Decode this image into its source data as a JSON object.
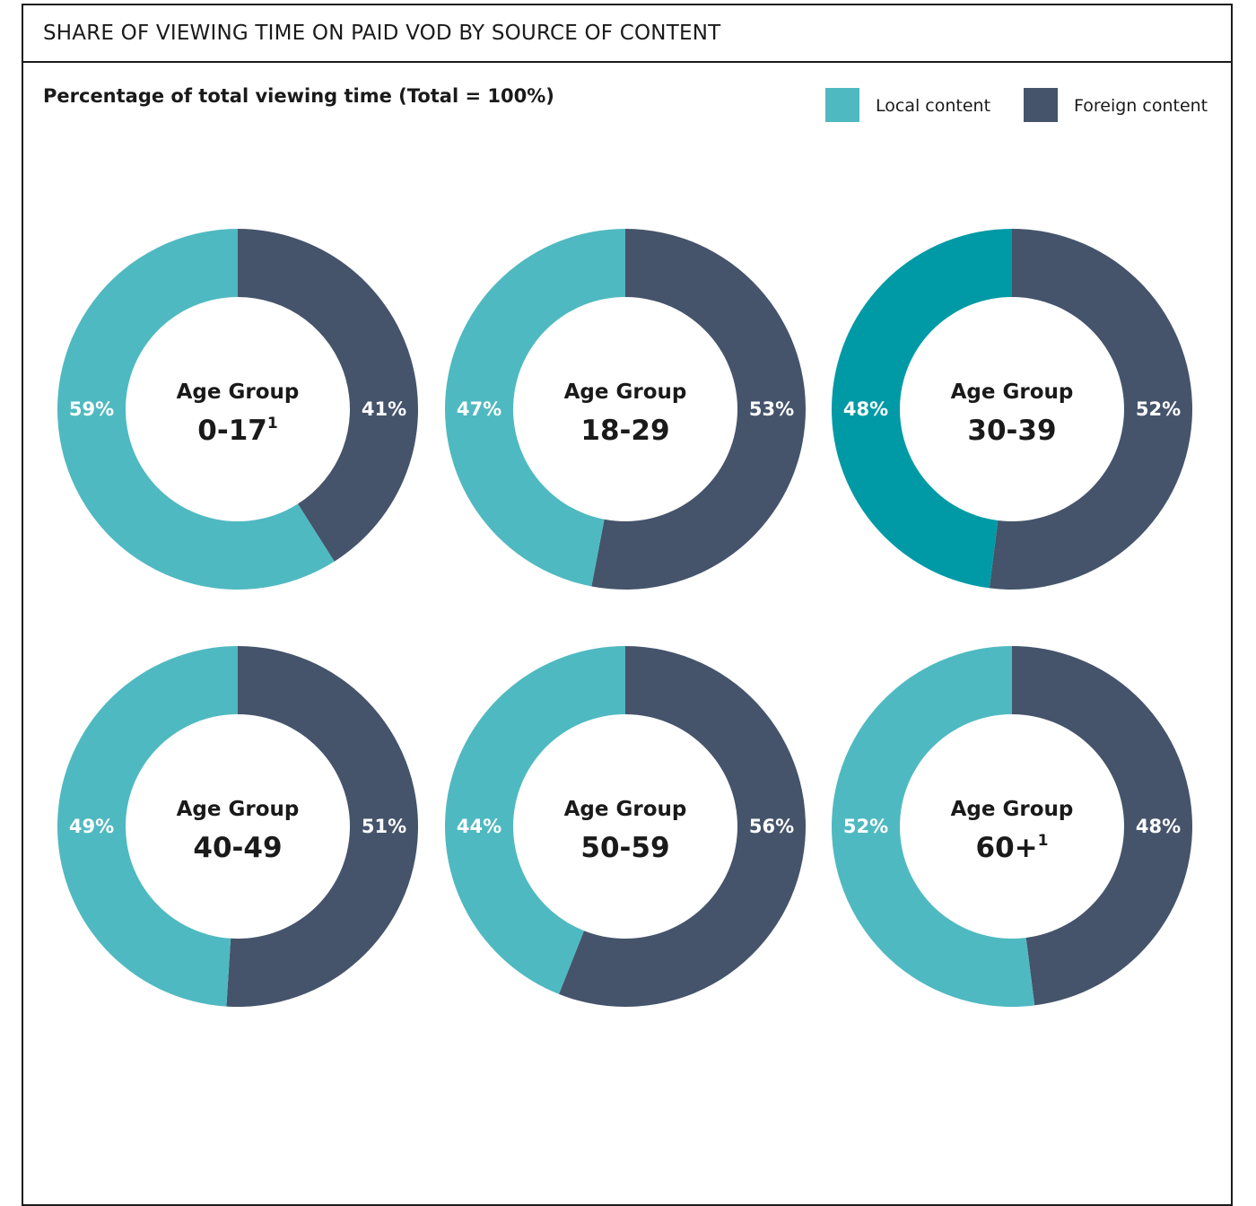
{
  "title": "SHARE OF VIEWING TIME ON PAID VOD BY SOURCE OF CONTENT",
  "subtitle": "Percentage of total viewing time (Total = 100%)",
  "legend": {
    "local_label": "Local content",
    "foreign_label": "Foreign content"
  },
  "colors": {
    "local": "#4fb9c1",
    "local_highlight": "#009aa6",
    "foreign": "#45546b",
    "text": "#1a1a1a"
  },
  "chart_data": [
    {
      "type": "pie",
      "donut": true,
      "center_label": "Age Group",
      "group": "0-17",
      "footnote": "1",
      "categories": [
        "Local content",
        "Foreign content"
      ],
      "values": [
        59,
        41
      ],
      "labels": [
        "59%",
        "41%"
      ],
      "highlight": false
    },
    {
      "type": "pie",
      "donut": true,
      "center_label": "Age Group",
      "group": "18-29",
      "footnote": "",
      "categories": [
        "Local content",
        "Foreign content"
      ],
      "values": [
        47,
        53
      ],
      "labels": [
        "47%",
        "53%"
      ],
      "highlight": false
    },
    {
      "type": "pie",
      "donut": true,
      "center_label": "Age Group",
      "group": "30-39",
      "footnote": "",
      "categories": [
        "Local content",
        "Foreign content"
      ],
      "values": [
        48,
        52
      ],
      "labels": [
        "48%",
        "52%"
      ],
      "highlight": true
    },
    {
      "type": "pie",
      "donut": true,
      "center_label": "Age Group",
      "group": "40-49",
      "footnote": "",
      "categories": [
        "Local content",
        "Foreign content"
      ],
      "values": [
        49,
        51
      ],
      "labels": [
        "49%",
        "51%"
      ],
      "highlight": false
    },
    {
      "type": "pie",
      "donut": true,
      "center_label": "Age Group",
      "group": "50-59",
      "footnote": "",
      "categories": [
        "Local content",
        "Foreign content"
      ],
      "values": [
        44,
        56
      ],
      "labels": [
        "44%",
        "56%"
      ],
      "highlight": false
    },
    {
      "type": "pie",
      "donut": true,
      "center_label": "Age Group",
      "group": "60+",
      "footnote": "1",
      "categories": [
        "Local content",
        "Foreign content"
      ],
      "values": [
        52,
        48
      ],
      "labels": [
        "52%",
        "48%"
      ],
      "highlight": false
    }
  ]
}
